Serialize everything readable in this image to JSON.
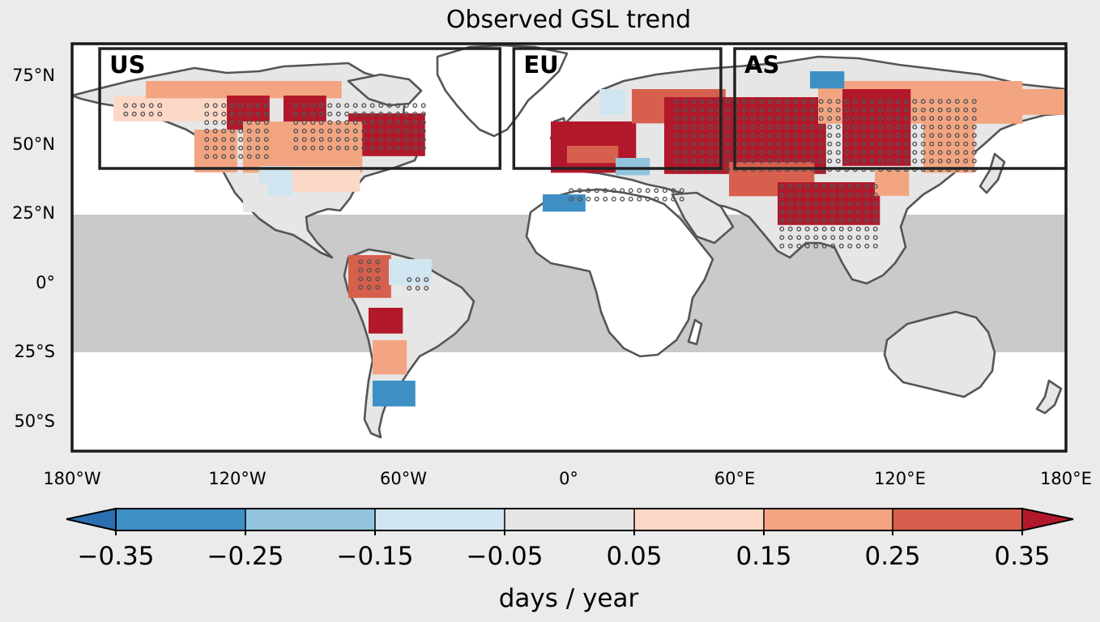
{
  "title": "Observed GSL trend",
  "map": {
    "lat_ticks": [
      "75°N",
      "50°N",
      "25°N",
      "0°",
      "25°S",
      "50°S"
    ],
    "lon_ticks": [
      "180°W",
      "120°W",
      "60°W",
      "0°",
      "60°E",
      "120°E",
      "180°E"
    ],
    "regions": [
      {
        "label": "US",
        "lon": [
          -170,
          -25
        ],
        "lat": [
          40,
          85
        ]
      },
      {
        "label": "EU",
        "lon": [
          -20,
          55
        ],
        "lat": [
          40,
          85
        ]
      },
      {
        "label": "AS",
        "lon": [
          60,
          180
        ],
        "lat": [
          40,
          85
        ]
      }
    ],
    "tropics_band_lat": [
      -25,
      25
    ],
    "colors": {
      "background": "#ebebeb",
      "ocean": "#ffffff",
      "tropics_band": "#cacaca",
      "land_no_data": "#e6e6e6",
      "coastline": "#555555",
      "stipple": "#555555",
      "frame": "#1a1a1a"
    }
  },
  "colorbar": {
    "ticks": [
      "−0.35",
      "−0.25",
      "−0.15",
      "−0.05",
      "0.05",
      "0.15",
      "0.25",
      "0.35"
    ],
    "colors": [
      "#2b6fb0",
      "#3e8fc4",
      "#92c4de",
      "#d1e5f0",
      "#e6e6e6",
      "#fcd9c6",
      "#f3a582",
      "#d6604d",
      "#b2182b"
    ],
    "label": "days / year"
  }
}
